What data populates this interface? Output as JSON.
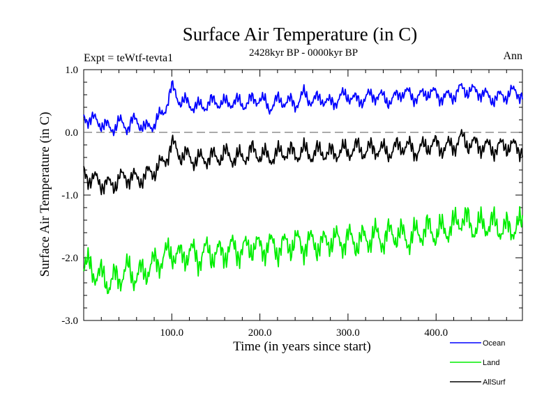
{
  "chart_data": {
    "type": "line",
    "title": "Surface Air Temperature (in C)",
    "subtitle": "2428kyr BP - 0000kyr BP",
    "expt_label": "Expt = teWtf-tevta1",
    "season_label": "Ann",
    "xlabel": "Time (in years since start)",
    "ylabel": "Surface Air Temperature (in C)",
    "xlim": [
      0,
      498
    ],
    "ylim": [
      -3.0,
      1.0
    ],
    "x_ticks": [
      100,
      200,
      300,
      400
    ],
    "x_tick_labels": [
      "100.0",
      "200.0",
      "300.0",
      "400.0"
    ],
    "y_ticks": [
      -3.0,
      -2.0,
      -1.0,
      0.0,
      1.0
    ],
    "y_tick_labels": [
      "-3.0",
      "-2.0",
      "-1.0",
      "0.0",
      "1.0"
    ],
    "reference_line": {
      "y": 0.0,
      "style": "dashed"
    },
    "legend_position": "bottom-right",
    "series": [
      {
        "name": "Ocean",
        "color": "#0000ff",
        "x": [
          0,
          10,
          20,
          30,
          40,
          50,
          60,
          70,
          80,
          90,
          100,
          110,
          120,
          130,
          140,
          150,
          160,
          170,
          180,
          190,
          200,
          210,
          220,
          230,
          240,
          250,
          260,
          270,
          280,
          290,
          300,
          310,
          320,
          330,
          340,
          350,
          360,
          370,
          380,
          390,
          400,
          410,
          420,
          430,
          440,
          450,
          460,
          470,
          480,
          490,
          498
        ],
        "values": [
          0.25,
          0.2,
          0.15,
          0.05,
          0.15,
          0.1,
          0.2,
          0.05,
          0.15,
          0.3,
          0.7,
          0.5,
          0.45,
          0.4,
          0.45,
          0.5,
          0.45,
          0.5,
          0.45,
          0.5,
          0.55,
          0.4,
          0.5,
          0.5,
          0.45,
          0.6,
          0.5,
          0.55,
          0.45,
          0.55,
          0.6,
          0.5,
          0.55,
          0.6,
          0.55,
          0.5,
          0.65,
          0.6,
          0.55,
          0.65,
          0.6,
          0.55,
          0.6,
          0.7,
          0.65,
          0.65,
          0.55,
          0.55,
          0.6,
          0.65,
          0.6
        ]
      },
      {
        "name": "Land",
        "color": "#00ee00",
        "x": [
          0,
          10,
          20,
          30,
          40,
          50,
          60,
          70,
          80,
          90,
          100,
          110,
          120,
          130,
          140,
          150,
          160,
          170,
          180,
          190,
          200,
          210,
          220,
          230,
          240,
          250,
          260,
          270,
          280,
          290,
          300,
          310,
          320,
          330,
          340,
          350,
          360,
          370,
          380,
          390,
          400,
          410,
          420,
          430,
          440,
          450,
          460,
          470,
          480,
          490,
          498
        ],
        "values": [
          -2.1,
          -2.2,
          -2.3,
          -2.4,
          -2.3,
          -2.2,
          -2.3,
          -2.2,
          -2.1,
          -2.0,
          -1.9,
          -2.0,
          -1.9,
          -2.0,
          -1.9,
          -1.95,
          -1.9,
          -1.85,
          -1.9,
          -1.8,
          -1.85,
          -1.8,
          -1.85,
          -1.8,
          -1.75,
          -1.8,
          -1.75,
          -1.8,
          -1.7,
          -1.75,
          -1.7,
          -1.75,
          -1.7,
          -1.65,
          -1.7,
          -1.6,
          -1.65,
          -1.7,
          -1.6,
          -1.55,
          -1.6,
          -1.55,
          -1.5,
          -1.35,
          -1.5,
          -1.5,
          -1.45,
          -1.5,
          -1.55,
          -1.5,
          -1.5
        ]
      },
      {
        "name": "AllSurf",
        "color": "#000000",
        "x": [
          0,
          10,
          20,
          30,
          40,
          50,
          60,
          70,
          80,
          90,
          100,
          110,
          120,
          130,
          140,
          150,
          160,
          170,
          180,
          190,
          200,
          210,
          220,
          230,
          240,
          250,
          260,
          270,
          280,
          290,
          300,
          310,
          320,
          330,
          340,
          350,
          360,
          370,
          380,
          390,
          400,
          410,
          420,
          430,
          440,
          450,
          460,
          470,
          480,
          490,
          498
        ],
        "values": [
          -0.65,
          -0.75,
          -0.8,
          -0.85,
          -0.75,
          -0.7,
          -0.75,
          -0.7,
          -0.6,
          -0.5,
          -0.2,
          -0.35,
          -0.4,
          -0.45,
          -0.4,
          -0.4,
          -0.35,
          -0.4,
          -0.4,
          -0.3,
          -0.35,
          -0.4,
          -0.35,
          -0.3,
          -0.35,
          -0.3,
          -0.35,
          -0.3,
          -0.35,
          -0.3,
          -0.3,
          -0.25,
          -0.3,
          -0.25,
          -0.3,
          -0.3,
          -0.2,
          -0.25,
          -0.3,
          -0.2,
          -0.2,
          -0.25,
          -0.2,
          -0.1,
          -0.2,
          -0.2,
          -0.25,
          -0.25,
          -0.2,
          -0.25,
          -0.25
        ]
      }
    ]
  }
}
